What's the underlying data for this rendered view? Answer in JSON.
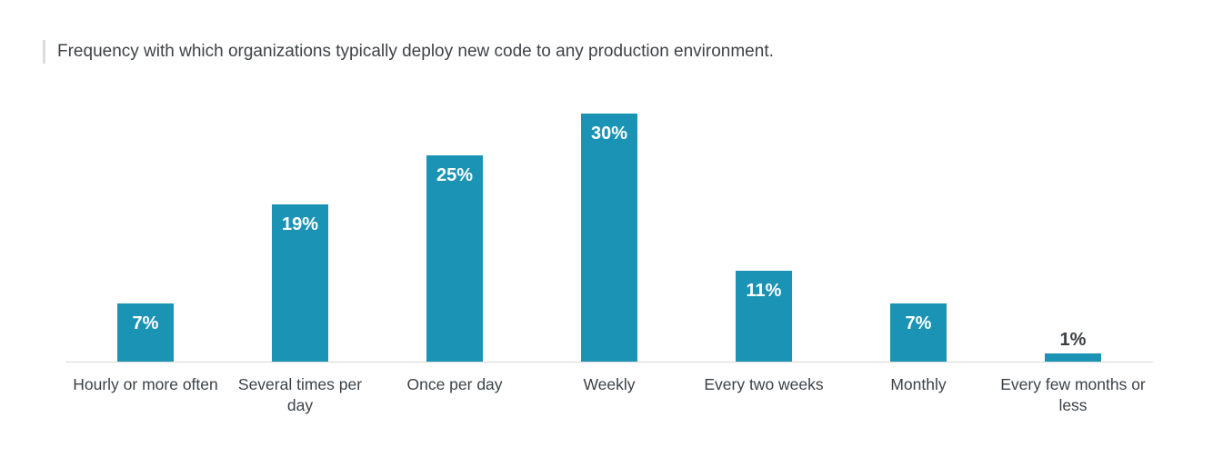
{
  "page": {
    "background_color": "#ffffff"
  },
  "title": {
    "accent_bar_color": "#dcdcdc",
    "text_color": "#3e4347"
  },
  "chart_data": {
    "type": "bar",
    "title": "Frequency with which organizations typically deploy new code to any production environment.",
    "categories": [
      "Hourly or more often",
      "Several times per day",
      "Once per day",
      "Weekly",
      "Every two weeks",
      "Monthly",
      "Every few months or less"
    ],
    "values": [
      7,
      19,
      25,
      30,
      11,
      7,
      1
    ],
    "value_labels": [
      "7%",
      "19%",
      "25%",
      "30%",
      "11%",
      "7%",
      "1%"
    ],
    "xlabel": "",
    "ylabel": "",
    "ylim": [
      0,
      33
    ],
    "grid": false,
    "legend": false,
    "bar_color": "#1a93b5",
    "inside_label_color": "#ffffff",
    "outside_label_color": "#3a4046",
    "category_label_color": "#3b4248",
    "axis_line_color": "#d8d8d8"
  }
}
